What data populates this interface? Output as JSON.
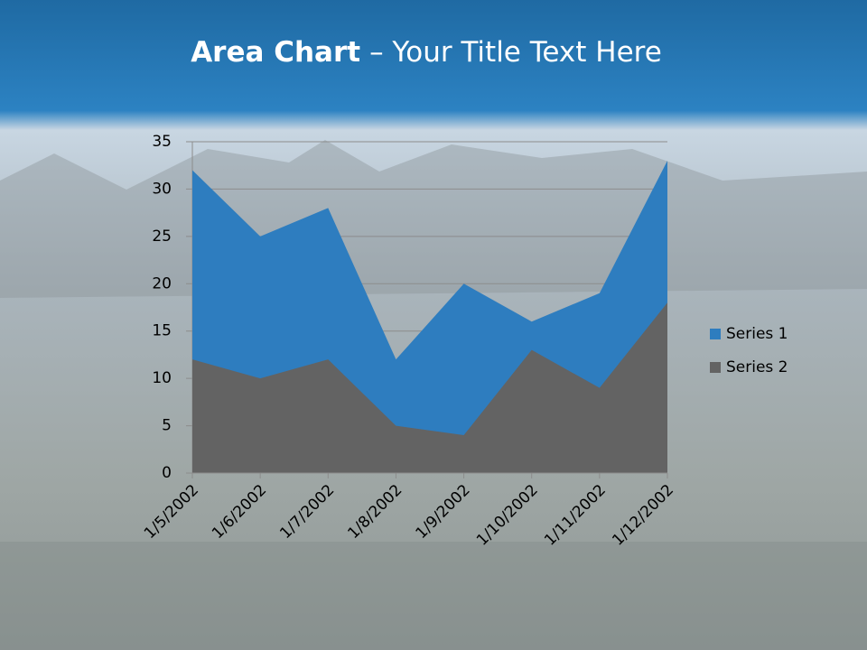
{
  "chart_data": {
    "type": "area",
    "title": "Area Chart",
    "title_rest": "– Your Title Text Here",
    "categories": [
      "1/5/2002",
      "1/6/2002",
      "1/7/2002",
      "1/8/2002",
      "1/9/2002",
      "1/10/2002",
      "1/11/2002",
      "1/12/2002"
    ],
    "series": [
      {
        "name": "Series 1",
        "color": "#2e7dbf",
        "values": [
          32,
          25,
          28,
          12,
          20,
          16,
          19,
          33
        ]
      },
      {
        "name": "Series 2",
        "color": "#636363",
        "values": [
          12,
          10,
          12,
          5,
          4,
          13,
          9,
          18
        ]
      }
    ],
    "ylim": [
      0,
      35
    ],
    "yticks": [
      0,
      5,
      10,
      15,
      20,
      25,
      30,
      35
    ],
    "grid": true,
    "legend": "right"
  }
}
